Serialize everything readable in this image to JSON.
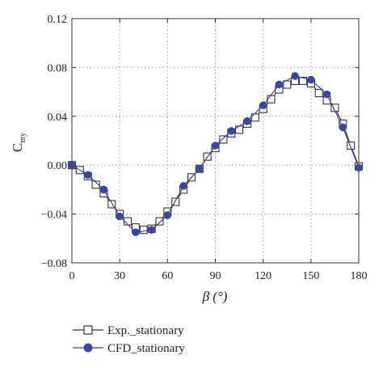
{
  "chart_data": {
    "type": "line",
    "title": "",
    "xlabel": "β (°)",
    "ylabel": "C",
    "ylabel_sub": "my",
    "xlim": [
      0,
      180
    ],
    "ylim": [
      -0.08,
      0.12
    ],
    "xticks": [
      0,
      30,
      60,
      90,
      120,
      150,
      180
    ],
    "xtick_labels": [
      "0",
      "30",
      "60",
      "90",
      "120",
      "150",
      "180"
    ],
    "yticks": [
      -0.08,
      -0.04,
      0.0,
      0.04,
      0.08,
      0.12
    ],
    "ytick_labels": [
      "−0.08",
      "−0.04",
      "0.00",
      "0.04",
      "0.08",
      "0.12"
    ],
    "grid": "dotted",
    "legend_placement": "bottom-left",
    "series": [
      {
        "name": "Exp._stationary",
        "marker": "square-open",
        "color": "#333333",
        "x": [
          0,
          5,
          10,
          15,
          20,
          25,
          30,
          35,
          40,
          45,
          50,
          55,
          60,
          65,
          70,
          75,
          80,
          85,
          90,
          95,
          100,
          105,
          110,
          115,
          120,
          125,
          130,
          135,
          140,
          145,
          150,
          155,
          160,
          165,
          170,
          175,
          180
        ],
        "y": [
          0.0,
          -0.004,
          -0.009,
          -0.016,
          -0.023,
          -0.032,
          -0.04,
          -0.046,
          -0.051,
          -0.053,
          -0.052,
          -0.046,
          -0.038,
          -0.03,
          -0.02,
          -0.01,
          -0.003,
          0.007,
          0.014,
          0.021,
          0.026,
          0.029,
          0.034,
          0.039,
          0.046,
          0.054,
          0.062,
          0.066,
          0.069,
          0.069,
          0.067,
          0.059,
          0.053,
          0.047,
          0.034,
          0.016,
          -0.001
        ]
      },
      {
        "name": "CFD_stationary",
        "marker": "circle-filled",
        "color": "#3a46a0",
        "x": [
          0,
          10,
          20,
          30,
          40,
          50,
          60,
          70,
          80,
          90,
          100,
          110,
          120,
          130,
          140,
          150,
          160,
          170,
          180
        ],
        "y": [
          0.0,
          -0.008,
          -0.02,
          -0.042,
          -0.055,
          -0.053,
          -0.041,
          -0.017,
          -0.003,
          0.016,
          0.028,
          0.036,
          0.049,
          0.066,
          0.073,
          0.07,
          0.058,
          0.031,
          -0.002
        ]
      }
    ]
  }
}
